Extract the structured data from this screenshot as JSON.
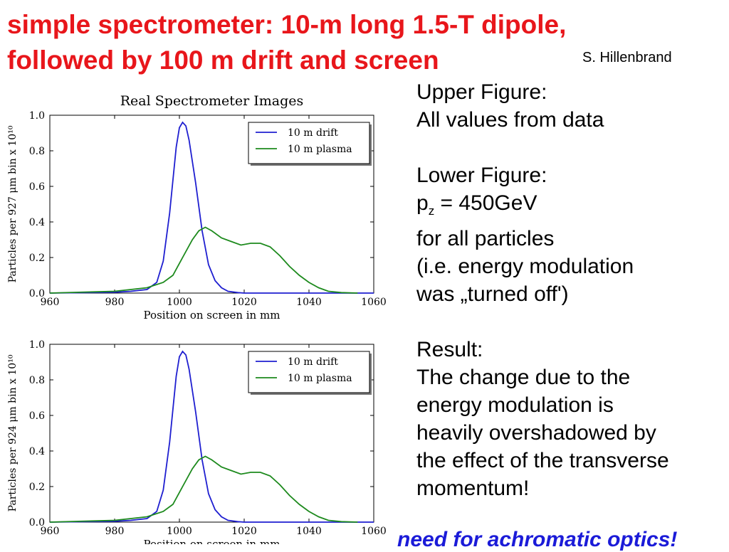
{
  "slide": {
    "title": "simple spectrometer: 10-m long 1.5-T dipole, followed by 100 m drift and screen",
    "author": "S. Hillenbrand",
    "conclusion": "need for achromatic optics!"
  },
  "notes": {
    "upper_heading": "Upper Figure:",
    "upper_text": "All values from data",
    "lower_heading": "Lower Figure:",
    "pz_symbol": "p",
    "pz_sub": "z",
    "pz_value": " = 450GeV",
    "lower_line2": "for all particles",
    "lower_line3": "(i.e. energy modulation",
    "lower_line4": "was „turned off')",
    "result_heading": "Result:",
    "result_lines": [
      "The change due to the",
      "energy modulation is",
      "heavily overshadowed by",
      "the effect of the transverse",
      "momentum!"
    ]
  },
  "chart_data": [
    {
      "type": "line",
      "title": "Real Spectrometer Images",
      "xlabel": "Position on screen in mm",
      "ylabel": "Particles per 927 μm bin x 10¹⁰",
      "xlim": [
        960,
        1060
      ],
      "ylim": [
        0,
        1.0
      ],
      "xticks": [
        960,
        980,
        1000,
        1020,
        1040,
        1060
      ],
      "yticks": [
        0.0,
        0.2,
        0.4,
        0.6,
        0.8,
        1.0
      ],
      "grid": false,
      "legend": "top-right",
      "series": [
        {
          "name": "10 m drift",
          "color": "#1f1fd0",
          "x": [
            960,
            980,
            985,
            990,
            993,
            995,
            997,
            999,
            1000,
            1001,
            1002,
            1003,
            1005,
            1007,
            1009,
            1011,
            1013,
            1015,
            1018,
            1020,
            1060
          ],
          "y": [
            0,
            0.005,
            0.01,
            0.02,
            0.06,
            0.18,
            0.45,
            0.82,
            0.93,
            0.96,
            0.94,
            0.86,
            0.62,
            0.35,
            0.16,
            0.07,
            0.03,
            0.01,
            0.003,
            0,
            0
          ]
        },
        {
          "name": "10 m plasma",
          "color": "#1d8a1d",
          "x": [
            960,
            980,
            990,
            995,
            998,
            1001,
            1004,
            1006,
            1008,
            1010,
            1013,
            1016,
            1019,
            1022,
            1025,
            1028,
            1031,
            1034,
            1037,
            1040,
            1043,
            1046,
            1050,
            1055
          ],
          "y": [
            0,
            0.01,
            0.03,
            0.06,
            0.1,
            0.2,
            0.3,
            0.35,
            0.37,
            0.35,
            0.31,
            0.29,
            0.27,
            0.28,
            0.28,
            0.26,
            0.21,
            0.15,
            0.1,
            0.06,
            0.03,
            0.01,
            0.003,
            0
          ]
        }
      ]
    },
    {
      "type": "line",
      "title": "",
      "xlabel": "Position on screen in mm",
      "ylabel": "Particles per 924 μm bin x 10¹⁰",
      "xlim": [
        960,
        1060
      ],
      "ylim": [
        0,
        1.0
      ],
      "xticks": [
        960,
        980,
        1000,
        1020,
        1040,
        1060
      ],
      "yticks": [
        0.0,
        0.2,
        0.4,
        0.6,
        0.8,
        1.0
      ],
      "grid": false,
      "legend": "top-right",
      "series": [
        {
          "name": "10 m drift",
          "color": "#1f1fd0",
          "x": [
            960,
            980,
            985,
            990,
            993,
            995,
            997,
            999,
            1000,
            1001,
            1002,
            1003,
            1005,
            1007,
            1009,
            1011,
            1013,
            1015,
            1018,
            1020,
            1060
          ],
          "y": [
            0,
            0.005,
            0.01,
            0.02,
            0.06,
            0.18,
            0.45,
            0.82,
            0.93,
            0.96,
            0.94,
            0.86,
            0.62,
            0.35,
            0.16,
            0.07,
            0.03,
            0.01,
            0.003,
            0,
            0
          ]
        },
        {
          "name": "10 m plasma",
          "color": "#1d8a1d",
          "x": [
            960,
            980,
            990,
            995,
            998,
            1001,
            1004,
            1006,
            1008,
            1010,
            1013,
            1016,
            1019,
            1022,
            1025,
            1028,
            1031,
            1034,
            1037,
            1040,
            1043,
            1046,
            1050,
            1055
          ],
          "y": [
            0,
            0.01,
            0.03,
            0.06,
            0.1,
            0.2,
            0.3,
            0.35,
            0.37,
            0.35,
            0.31,
            0.29,
            0.27,
            0.28,
            0.28,
            0.26,
            0.21,
            0.15,
            0.1,
            0.06,
            0.03,
            0.01,
            0.003,
            0
          ]
        }
      ]
    }
  ]
}
